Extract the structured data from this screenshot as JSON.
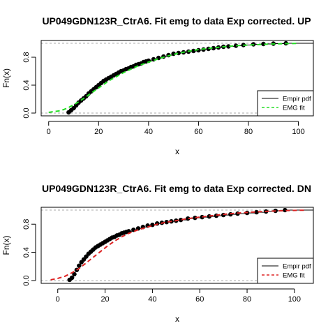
{
  "chart_data": [
    {
      "type": "line",
      "title": "UP049GDN123R_CtrA6. Fit emg to data Exp corrected. UP",
      "xlabel": "x",
      "ylabel": "Fn(x)",
      "xlim": [
        -3,
        106
      ],
      "ylim": [
        -0.04,
        1.04
      ],
      "x_ticks": [
        0,
        20,
        40,
        60,
        80,
        100
      ],
      "x_tick_labels": [
        "0",
        "20",
        "40",
        "60",
        "80",
        "100"
      ],
      "y_ticks": [
        0.0,
        0.4,
        0.8
      ],
      "y_tick_labels": [
        "0.0",
        "0.4",
        "0.8"
      ],
      "reference_lines_y": [
        0,
        1
      ],
      "legend": {
        "position": "bottom-right",
        "entries": [
          "Empir pdf",
          "EMG fit"
        ]
      },
      "series": [
        {
          "name": "Empir pdf",
          "kind": "points",
          "color": "#000000",
          "x": [
            8,
            9,
            10,
            11,
            12,
            13,
            14,
            15,
            16,
            17,
            18,
            19,
            20,
            21,
            22,
            23,
            24,
            25,
            26,
            27,
            28,
            29,
            30,
            31,
            32,
            33,
            34,
            35,
            36,
            37,
            38,
            39,
            40,
            42,
            44,
            46,
            48,
            50,
            52,
            54,
            56,
            58,
            60,
            62,
            64,
            66,
            68,
            70,
            72,
            75,
            78,
            82,
            86,
            90,
            95
          ],
          "y": [
            0.01,
            0.04,
            0.07,
            0.11,
            0.15,
            0.18,
            0.21,
            0.24,
            0.28,
            0.31,
            0.34,
            0.37,
            0.4,
            0.43,
            0.46,
            0.48,
            0.5,
            0.52,
            0.54,
            0.56,
            0.58,
            0.6,
            0.61,
            0.63,
            0.64,
            0.66,
            0.67,
            0.69,
            0.7,
            0.71,
            0.73,
            0.74,
            0.75,
            0.77,
            0.79,
            0.81,
            0.83,
            0.85,
            0.86,
            0.87,
            0.88,
            0.89,
            0.9,
            0.91,
            0.92,
            0.93,
            0.94,
            0.95,
            0.955,
            0.965,
            0.975,
            0.985,
            0.99,
            0.995,
            1.0
          ]
        },
        {
          "name": "Empir pdf",
          "kind": "step",
          "color": "#000000",
          "x": [
            8,
            9,
            10,
            11,
            12,
            13,
            14,
            15,
            16,
            17,
            18,
            19,
            20,
            21,
            22,
            23,
            24,
            25,
            26,
            27,
            28,
            29,
            30,
            31,
            32,
            33,
            34,
            35,
            36,
            37,
            38,
            39,
            40,
            42,
            44,
            46,
            48,
            50,
            52,
            54,
            56,
            58,
            60,
            62,
            64,
            66,
            68,
            70,
            72,
            75,
            78,
            82,
            86,
            90,
            95
          ],
          "y": [
            0.01,
            0.04,
            0.07,
            0.11,
            0.15,
            0.18,
            0.21,
            0.24,
            0.28,
            0.31,
            0.34,
            0.37,
            0.4,
            0.43,
            0.46,
            0.48,
            0.5,
            0.52,
            0.54,
            0.56,
            0.58,
            0.6,
            0.61,
            0.63,
            0.64,
            0.66,
            0.67,
            0.69,
            0.7,
            0.71,
            0.73,
            0.74,
            0.75,
            0.77,
            0.79,
            0.81,
            0.83,
            0.85,
            0.86,
            0.87,
            0.88,
            0.89,
            0.9,
            0.91,
            0.92,
            0.93,
            0.94,
            0.95,
            0.955,
            0.965,
            0.975,
            0.985,
            0.99,
            0.995,
            1.0
          ]
        },
        {
          "name": "EMG fit",
          "kind": "dashed",
          "color": "#22dd22",
          "x": [
            0,
            2,
            4,
            6,
            8,
            10,
            12,
            14,
            16,
            18,
            20,
            22,
            24,
            26,
            28,
            30,
            33,
            36,
            40,
            45,
            50,
            55,
            60,
            65,
            70,
            75,
            80,
            85,
            90,
            95,
            100
          ],
          "y": [
            0.01,
            0.02,
            0.03,
            0.05,
            0.08,
            0.12,
            0.16,
            0.21,
            0.26,
            0.31,
            0.36,
            0.41,
            0.46,
            0.5,
            0.54,
            0.58,
            0.63,
            0.68,
            0.73,
            0.79,
            0.84,
            0.88,
            0.91,
            0.93,
            0.95,
            0.965,
            0.975,
            0.983,
            0.99,
            0.995,
            0.998
          ]
        }
      ]
    },
    {
      "type": "line",
      "title": "UP049GDN123R_CtrA6. Fit emg to data Exp corrected. DN",
      "xlabel": "x",
      "ylabel": "Fn(x)",
      "xlim": [
        -7,
        108
      ],
      "ylim": [
        -0.04,
        1.04
      ],
      "x_ticks": [
        0,
        20,
        40,
        60,
        80,
        100
      ],
      "x_tick_labels": [
        "0",
        "20",
        "40",
        "60",
        "80",
        "100"
      ],
      "y_ticks": [
        0.0,
        0.4,
        0.8
      ],
      "y_tick_labels": [
        "0.0",
        "0.4",
        "0.8"
      ],
      "reference_lines_y": [
        0,
        1
      ],
      "legend": {
        "position": "bottom-right",
        "entries": [
          "Empir pdf",
          "EMG fit"
        ]
      },
      "series": [
        {
          "name": "Empir pdf",
          "kind": "points",
          "color": "#000000",
          "x": [
            5,
            6,
            7,
            8,
            9,
            10,
            11,
            12,
            13,
            14,
            15,
            16,
            17,
            18,
            19,
            20,
            21,
            22,
            23,
            24,
            25,
            26,
            27,
            28,
            29,
            30,
            32,
            34,
            36,
            38,
            40,
            42,
            44,
            46,
            48,
            50,
            52,
            55,
            58,
            61,
            64,
            67,
            70,
            73,
            76,
            80,
            84,
            88,
            92,
            96
          ],
          "y": [
            0.01,
            0.04,
            0.09,
            0.15,
            0.21,
            0.26,
            0.3,
            0.34,
            0.38,
            0.41,
            0.44,
            0.47,
            0.49,
            0.51,
            0.53,
            0.55,
            0.57,
            0.59,
            0.61,
            0.62,
            0.64,
            0.65,
            0.67,
            0.68,
            0.69,
            0.7,
            0.72,
            0.74,
            0.76,
            0.78,
            0.79,
            0.81,
            0.82,
            0.83,
            0.84,
            0.85,
            0.86,
            0.88,
            0.89,
            0.9,
            0.91,
            0.92,
            0.93,
            0.94,
            0.95,
            0.96,
            0.97,
            0.98,
            0.99,
            1.0
          ]
        },
        {
          "name": "Empir pdf",
          "kind": "step",
          "color": "#000000",
          "x": [
            5,
            6,
            7,
            8,
            9,
            10,
            11,
            12,
            13,
            14,
            15,
            16,
            17,
            18,
            19,
            20,
            21,
            22,
            23,
            24,
            25,
            26,
            27,
            28,
            29,
            30,
            32,
            34,
            36,
            38,
            40,
            42,
            44,
            46,
            48,
            50,
            52,
            55,
            58,
            61,
            64,
            67,
            70,
            73,
            76,
            80,
            84,
            88,
            92,
            96
          ],
          "y": [
            0.01,
            0.04,
            0.09,
            0.15,
            0.21,
            0.26,
            0.3,
            0.34,
            0.38,
            0.41,
            0.44,
            0.47,
            0.49,
            0.51,
            0.53,
            0.55,
            0.57,
            0.59,
            0.61,
            0.62,
            0.64,
            0.65,
            0.67,
            0.68,
            0.69,
            0.7,
            0.72,
            0.74,
            0.76,
            0.78,
            0.79,
            0.81,
            0.82,
            0.83,
            0.84,
            0.85,
            0.86,
            0.88,
            0.89,
            0.9,
            0.91,
            0.92,
            0.93,
            0.94,
            0.95,
            0.96,
            0.97,
            0.98,
            0.99,
            1.0
          ]
        },
        {
          "name": "EMG fit",
          "kind": "dashed",
          "color": "#dd2222",
          "x": [
            -3,
            0,
            3,
            6,
            9,
            12,
            15,
            18,
            21,
            24,
            27,
            30,
            34,
            38,
            42,
            46,
            50,
            55,
            60,
            65,
            70,
            75,
            80,
            85,
            90,
            95,
            100,
            105
          ],
          "y": [
            0.01,
            0.03,
            0.06,
            0.11,
            0.17,
            0.25,
            0.33,
            0.41,
            0.49,
            0.56,
            0.62,
            0.67,
            0.72,
            0.76,
            0.8,
            0.83,
            0.85,
            0.88,
            0.9,
            0.92,
            0.94,
            0.955,
            0.967,
            0.977,
            0.985,
            0.991,
            0.996,
            0.999
          ]
        }
      ]
    }
  ]
}
